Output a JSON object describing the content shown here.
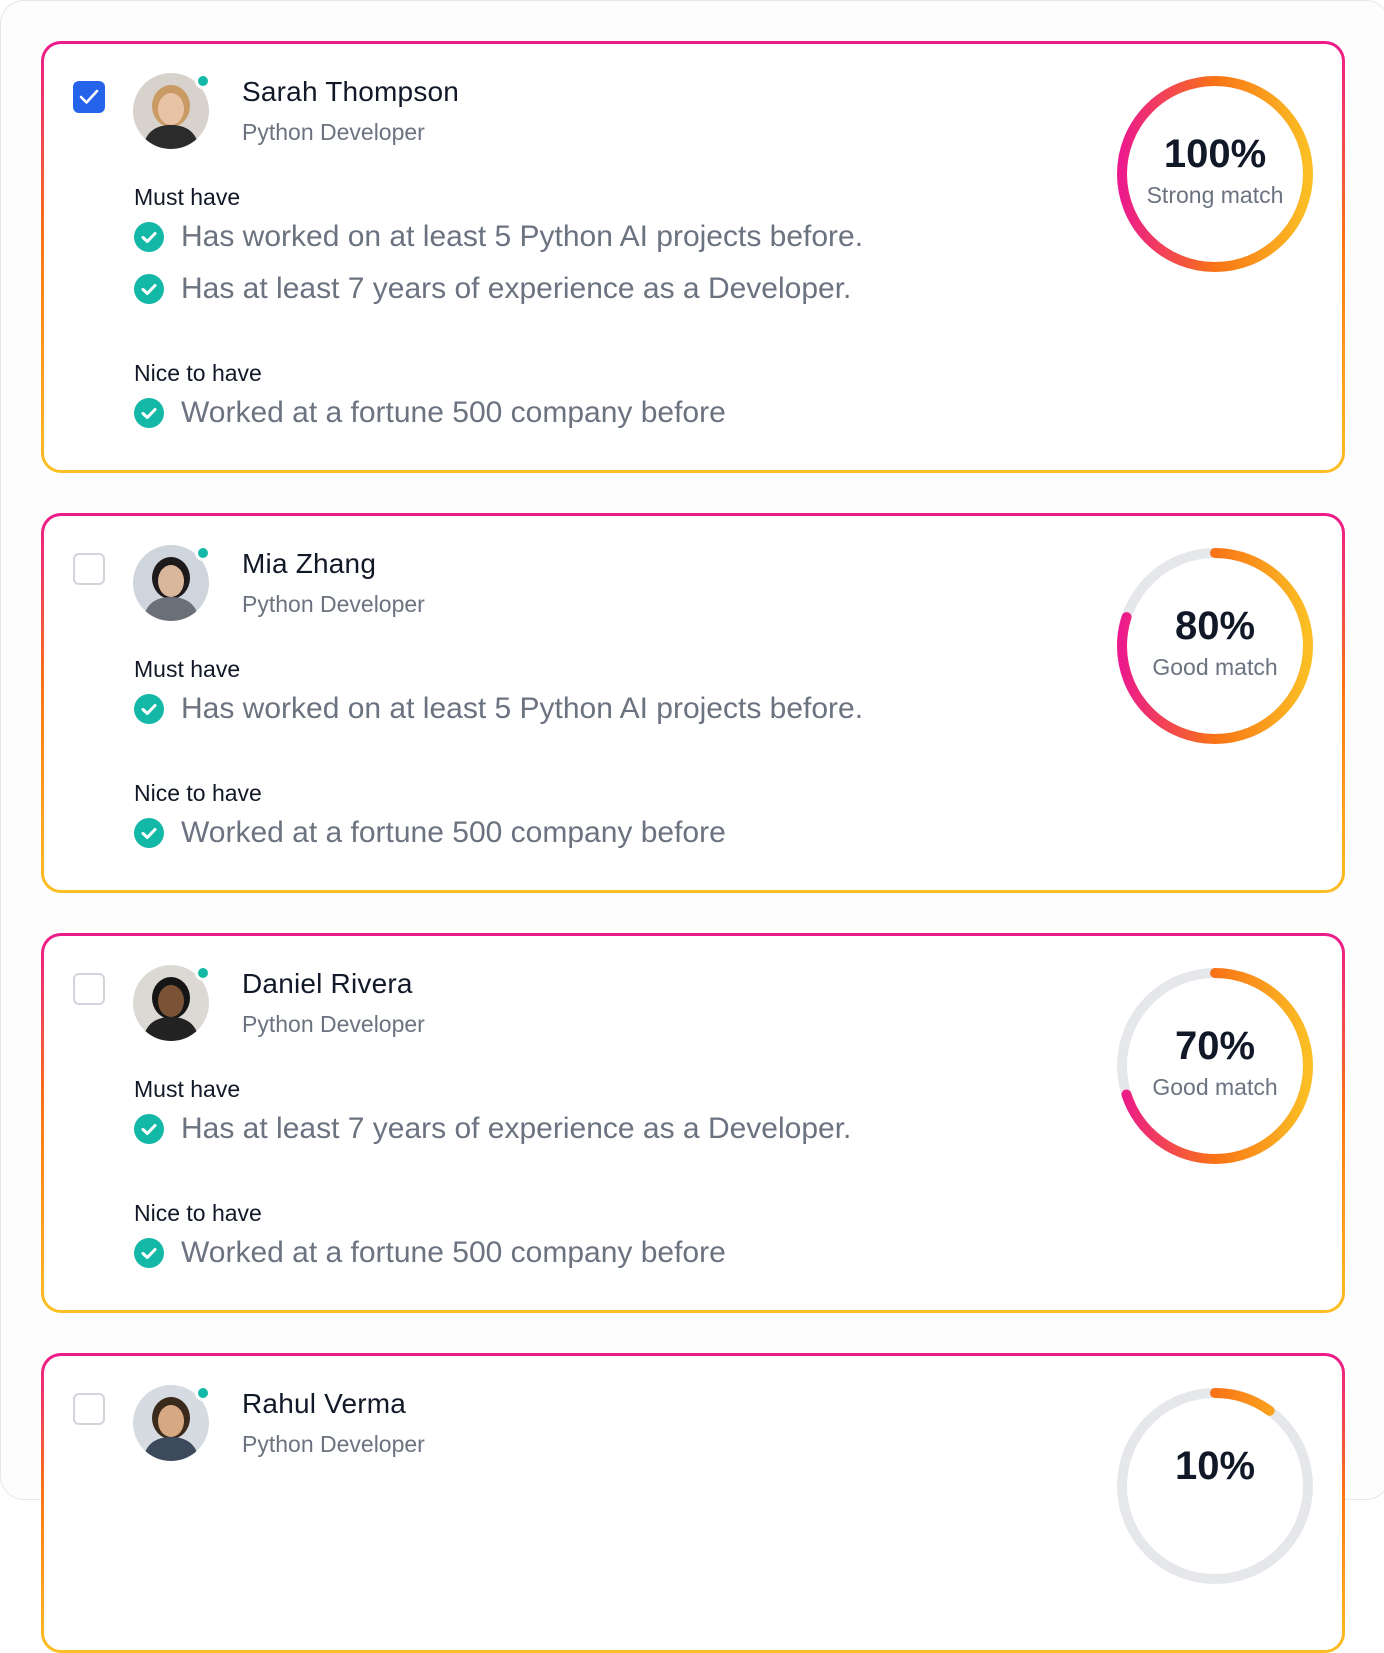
{
  "colors": {
    "accent_checkbox": "#2563eb",
    "check_green": "#14b8a6",
    "gradient_top": "#ec1a8c",
    "gradient_mid": "#f97316",
    "gradient_bottom": "#fbbf24",
    "track_gray": "#e5e7eb"
  },
  "candidates": [
    {
      "selected": true,
      "name": "Sarah Thompson",
      "role": "Python Developer",
      "online": true,
      "must_have_title": "Must have",
      "must_have": [
        {
          "icon": "check-circle-icon",
          "text": "Has worked on at least 5 Python AI projects before."
        },
        {
          "icon": "check-circle-icon",
          "text": "Has at least 7 years of experience as a Developer."
        }
      ],
      "nice_to_have_title": "Nice to have",
      "nice_to_have": [
        {
          "icon": "check-circle-icon",
          "text": "Worked at a fortune 500 company before"
        }
      ],
      "score_percent": 100,
      "score_text": "100%",
      "match_label": "Strong match"
    },
    {
      "selected": false,
      "name": "Mia Zhang",
      "role": "Python Developer",
      "online": true,
      "must_have_title": "Must have",
      "must_have": [
        {
          "icon": "check-circle-icon",
          "text": "Has worked on at least 5 Python AI projects before."
        }
      ],
      "nice_to_have_title": "Nice to have",
      "nice_to_have": [
        {
          "icon": "check-circle-icon",
          "text": "Worked at a fortune 500 company before"
        }
      ],
      "score_percent": 80,
      "score_text": "80%",
      "match_label": "Good match"
    },
    {
      "selected": false,
      "name": "Daniel Rivera",
      "role": "Python Developer",
      "online": true,
      "must_have_title": "Must have",
      "must_have": [
        {
          "icon": "check-circle-icon",
          "text": "Has at least 7 years of experience as a Developer."
        }
      ],
      "nice_to_have_title": "Nice to have",
      "nice_to_have": [
        {
          "icon": "check-circle-icon",
          "text": "Worked at a fortune 500 company before"
        }
      ],
      "score_percent": 70,
      "score_text": "70%",
      "match_label": "Good match"
    },
    {
      "selected": false,
      "name": "Rahul Verma",
      "role": "Python Developer",
      "online": true,
      "must_have_title": "",
      "must_have": [],
      "nice_to_have_title": "",
      "nice_to_have": [],
      "score_percent": 10,
      "score_text": "10%",
      "match_label": ""
    }
  ]
}
